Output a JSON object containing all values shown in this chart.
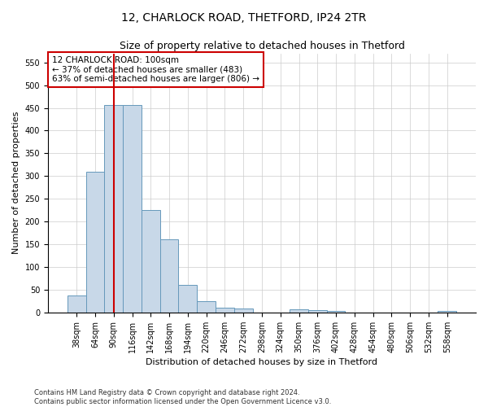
{
  "title": "12, CHARLOCK ROAD, THETFORD, IP24 2TR",
  "subtitle": "Size of property relative to detached houses in Thetford",
  "xlabel": "Distribution of detached houses by size in Thetford",
  "ylabel": "Number of detached properties",
  "categories": [
    "38sqm",
    "64sqm",
    "90sqm",
    "116sqm",
    "142sqm",
    "168sqm",
    "194sqm",
    "220sqm",
    "246sqm",
    "272sqm",
    "298sqm",
    "324sqm",
    "350sqm",
    "376sqm",
    "402sqm",
    "428sqm",
    "454sqm",
    "480sqm",
    "506sqm",
    "532sqm",
    "558sqm"
  ],
  "values": [
    38,
    310,
    457,
    457,
    225,
    160,
    60,
    25,
    10,
    8,
    0,
    0,
    6,
    5,
    3,
    0,
    0,
    0,
    0,
    0,
    3
  ],
  "bar_color": "#c8d8e8",
  "bar_edgecolor": "#6699bb",
  "redline_x": 2.0,
  "annotation_line1": "12 CHARLOCK ROAD: 100sqm",
  "annotation_line2": "← 37% of detached houses are smaller (483)",
  "annotation_line3": "63% of semi-detached houses are larger (806) →",
  "annotation_box_color": "#ffffff",
  "annotation_box_edgecolor": "#cc0000",
  "redline_color": "#cc0000",
  "ylim": [
    0,
    570
  ],
  "yticks": [
    0,
    50,
    100,
    150,
    200,
    250,
    300,
    350,
    400,
    450,
    500,
    550
  ],
  "footer1": "Contains HM Land Registry data © Crown copyright and database right 2024.",
  "footer2": "Contains public sector information licensed under the Open Government Licence v3.0.",
  "title_fontsize": 10,
  "subtitle_fontsize": 9,
  "axis_label_fontsize": 8,
  "tick_fontsize": 7,
  "background_color": "#ffffff",
  "grid_color": "#cccccc"
}
